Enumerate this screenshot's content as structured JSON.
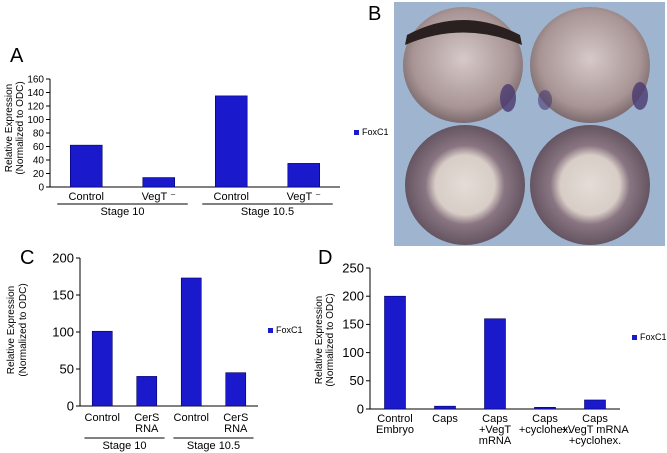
{
  "colors": {
    "bar": "#1a1acc",
    "bar_edge": "#000066",
    "axis": "#000000"
  },
  "panels": {
    "A": "A",
    "B": "B",
    "C": "C",
    "D": "D"
  },
  "chart_data": [
    {
      "panel": "A",
      "type": "bar",
      "categories": [
        "Control",
        "VegT ⁻",
        "Control",
        "VegT ⁻"
      ],
      "groups": [
        "Stage 10",
        "Stage 10.5"
      ],
      "series": [
        {
          "name": "FoxC1",
          "values": [
            62,
            14,
            135,
            35
          ]
        }
      ],
      "ylabel": "Relative Expression\n(Normalized to ODC)",
      "ylim": [
        0,
        160
      ],
      "yticks": [
        0,
        20,
        40,
        60,
        80,
        100,
        120,
        140,
        160
      ],
      "legend": "right"
    },
    {
      "panel": "C",
      "type": "bar",
      "categories": [
        "Control",
        "CerS\nRNA",
        "Control",
        "CerS\nRNA"
      ],
      "groups": [
        "Stage 10",
        "Stage 10.5"
      ],
      "series": [
        {
          "name": "FoxC1",
          "values": [
            101,
            40,
            173,
            45
          ]
        }
      ],
      "ylabel": "Relative Expression\n(Normalized to ODC)",
      "ylim": [
        0,
        200
      ],
      "yticks": [
        0,
        50,
        100,
        150,
        200
      ],
      "legend": "right"
    },
    {
      "panel": "D",
      "type": "bar",
      "categories": [
        "Control\nEmbryo",
        "Caps",
        "Caps\n+VegT\nmRNA",
        "Caps\n+cyclohex.",
        "Caps\n+VegT mRNA\n+cyclohex."
      ],
      "series": [
        {
          "name": "FoxC1",
          "values": [
            200,
            5,
            160,
            3,
            16
          ]
        }
      ],
      "ylabel": "Relative Expression\n(Normalized to ODC)",
      "ylim": [
        0,
        250
      ],
      "yticks": [
        0,
        50,
        100,
        150,
        200,
        250
      ],
      "legend": "right"
    }
  ]
}
